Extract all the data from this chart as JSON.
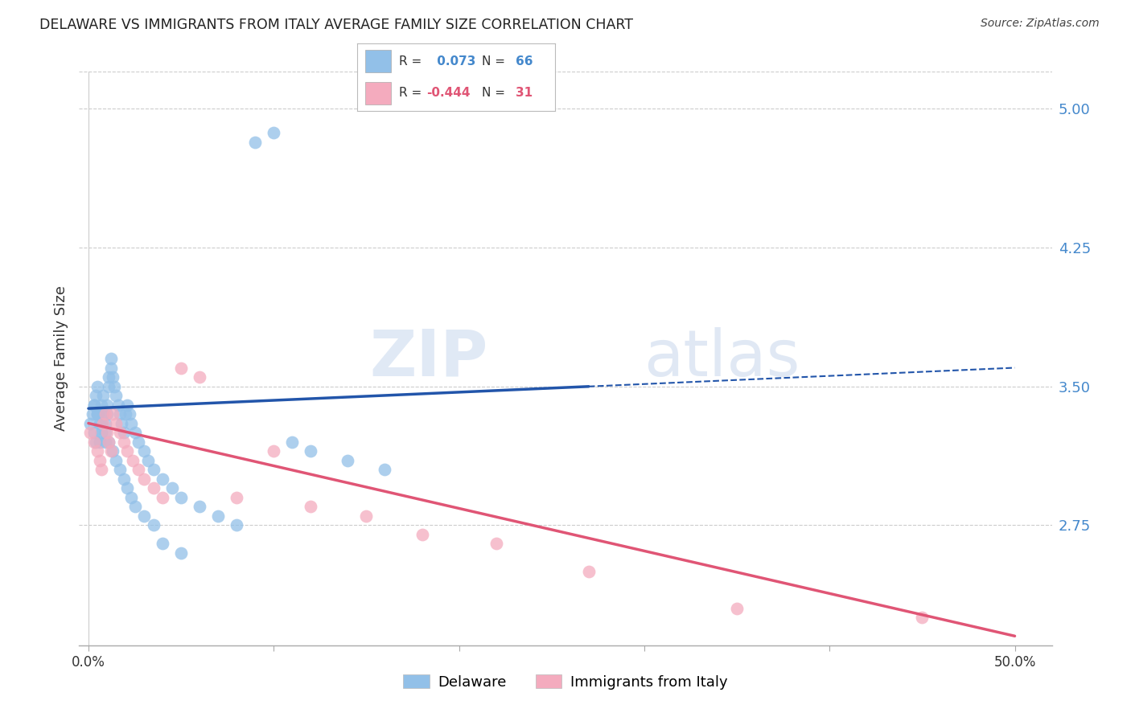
{
  "title": "DELAWARE VS IMMIGRANTS FROM ITALY AVERAGE FAMILY SIZE CORRELATION CHART",
  "source": "Source: ZipAtlas.com",
  "ylabel": "Average Family Size",
  "xlim": [
    -0.005,
    0.52
  ],
  "ylim": [
    2.1,
    5.2
  ],
  "yticks": [
    2.75,
    3.5,
    4.25,
    5.0
  ],
  "xtick_positions": [
    0.0,
    0.1,
    0.2,
    0.3,
    0.4,
    0.5
  ],
  "xtick_labels": [
    "0.0%",
    "",
    "",
    "",
    "",
    "50.0%"
  ],
  "blue_color": "#92C0E8",
  "pink_color": "#F4ABBE",
  "blue_line_color": "#2255AA",
  "pink_line_color": "#E05575",
  "blue_line_solid_end": 0.27,
  "blue_line_x0": 0.0,
  "blue_line_x1": 0.5,
  "blue_line_y0": 3.38,
  "blue_line_y1": 3.6,
  "pink_line_x0": 0.0,
  "pink_line_x1": 0.5,
  "pink_line_y0": 3.3,
  "pink_line_y1": 2.15,
  "blue_x": [
    0.001,
    0.002,
    0.003,
    0.003,
    0.004,
    0.004,
    0.005,
    0.005,
    0.006,
    0.006,
    0.007,
    0.007,
    0.008,
    0.008,
    0.009,
    0.009,
    0.01,
    0.01,
    0.011,
    0.011,
    0.012,
    0.012,
    0.013,
    0.014,
    0.015,
    0.016,
    0.017,
    0.018,
    0.019,
    0.02,
    0.021,
    0.022,
    0.023,
    0.025,
    0.027,
    0.03,
    0.032,
    0.035,
    0.04,
    0.045,
    0.05,
    0.06,
    0.07,
    0.08,
    0.09,
    0.1,
    0.11,
    0.12,
    0.14,
    0.16,
    0.003,
    0.005,
    0.007,
    0.009,
    0.011,
    0.013,
    0.015,
    0.017,
    0.019,
    0.021,
    0.023,
    0.025,
    0.03,
    0.035,
    0.04,
    0.05
  ],
  "blue_y": [
    3.3,
    3.35,
    3.25,
    3.4,
    3.2,
    3.45,
    3.35,
    3.5,
    3.3,
    3.2,
    3.4,
    3.25,
    3.35,
    3.45,
    3.3,
    3.2,
    3.35,
    3.4,
    3.5,
    3.55,
    3.6,
    3.65,
    3.55,
    3.5,
    3.45,
    3.4,
    3.35,
    3.3,
    3.25,
    3.35,
    3.4,
    3.35,
    3.3,
    3.25,
    3.2,
    3.15,
    3.1,
    3.05,
    3.0,
    2.95,
    2.9,
    2.85,
    2.8,
    2.75,
    4.82,
    4.87,
    3.2,
    3.15,
    3.1,
    3.05,
    3.4,
    3.35,
    3.3,
    3.25,
    3.2,
    3.15,
    3.1,
    3.05,
    3.0,
    2.95,
    2.9,
    2.85,
    2.8,
    2.75,
    2.65,
    2.6
  ],
  "pink_x": [
    0.001,
    0.003,
    0.005,
    0.006,
    0.007,
    0.008,
    0.009,
    0.01,
    0.011,
    0.012,
    0.013,
    0.015,
    0.017,
    0.019,
    0.021,
    0.024,
    0.027,
    0.03,
    0.035,
    0.04,
    0.05,
    0.06,
    0.08,
    0.1,
    0.12,
    0.15,
    0.18,
    0.22,
    0.27,
    0.35,
    0.45
  ],
  "pink_y": [
    3.25,
    3.2,
    3.15,
    3.1,
    3.05,
    3.3,
    3.35,
    3.25,
    3.2,
    3.15,
    3.35,
    3.3,
    3.25,
    3.2,
    3.15,
    3.1,
    3.05,
    3.0,
    2.95,
    2.9,
    3.6,
    3.55,
    2.9,
    3.15,
    2.85,
    2.8,
    2.7,
    2.65,
    2.5,
    2.3,
    2.25
  ],
  "watermark_zip": "ZIP",
  "watermark_atlas": "atlas",
  "stats_r1_label": "R = ",
  "stats_r1_val": " 0.073",
  "stats_n1_label": "N = ",
  "stats_n1_val": "66",
  "stats_r2_label": "R = ",
  "stats_r2_val": "-0.444",
  "stats_n2_label": "N = ",
  "stats_n2_val": "31",
  "legend1": "Delaware",
  "legend2": "Immigrants from Italy"
}
